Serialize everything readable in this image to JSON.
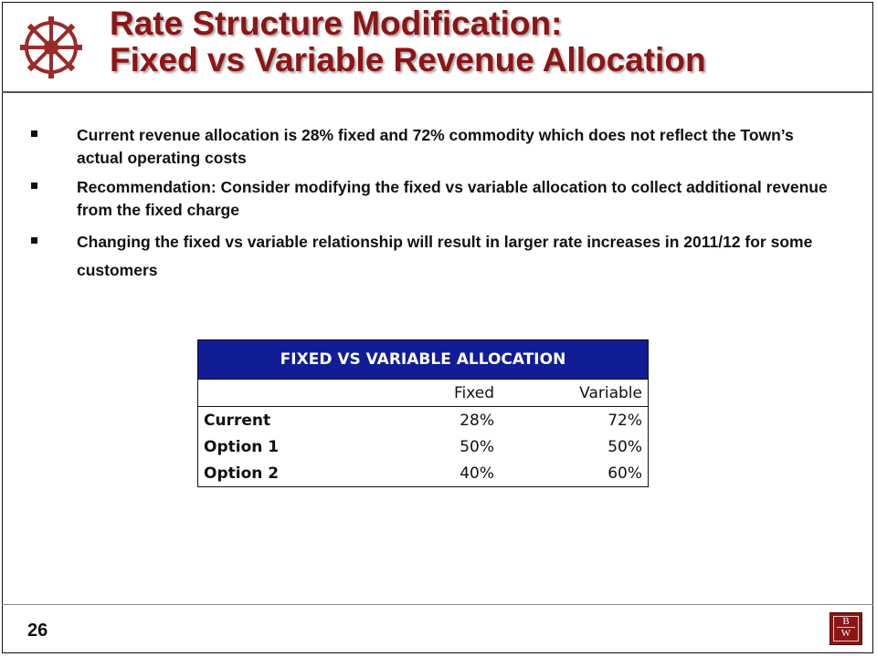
{
  "slide": {
    "title_line1": "Rate Structure Modification:",
    "title_line2": "Fixed vs Variable Revenue Allocation",
    "page_number": "26",
    "accent_color": "#8c1515",
    "logo_left_icon": "gear-wheel-icon",
    "logo_right": {
      "letter1": "B",
      "letter2": "W"
    }
  },
  "bullets": [
    {
      "text": "Current revenue allocation is 28% fixed and 72% commodity which does not reflect the Town’s actual operating costs"
    },
    {
      "text": "Recommendation:  Consider modifying the fixed vs variable allocation to collect additional revenue from the fixed charge"
    },
    {
      "text": "Changing the fixed vs variable relationship will result in larger rate increases in 2011/12 for some customers"
    }
  ],
  "table": {
    "caption": "FIXED VS VARIABLE ALLOCATION",
    "header_color": "#111d94",
    "columns": [
      "",
      "Fixed",
      "Variable"
    ],
    "rows": [
      {
        "label": "Current",
        "fixed": "28%",
        "variable": "72%"
      },
      {
        "label": "Option 1",
        "fixed": "50%",
        "variable": "50%"
      },
      {
        "label": "Option 2",
        "fixed": "40%",
        "variable": "60%"
      }
    ]
  }
}
